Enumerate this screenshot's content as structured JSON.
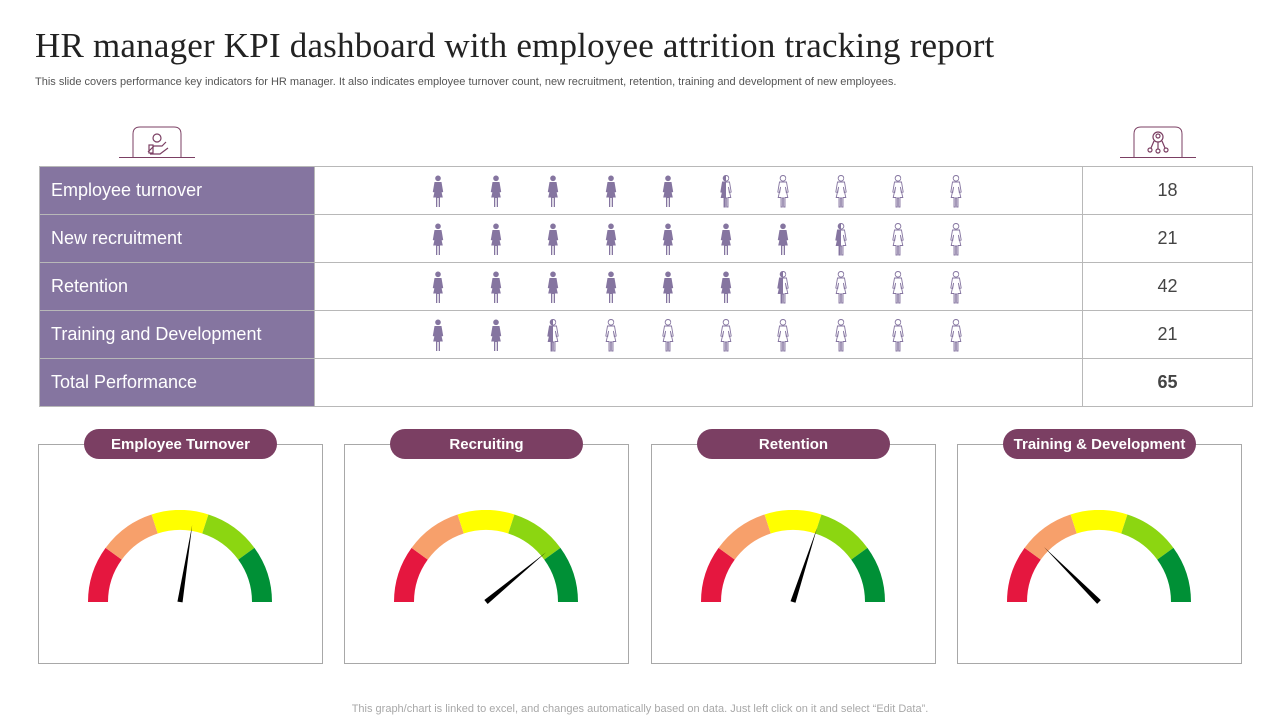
{
  "header": {
    "title": "HR manager KPI dashboard with employee attrition tracking report",
    "subtitle": "This slide covers performance key indicators for HR manager. It also indicates employee turnover count, new recruitment, retention, training and development of new employees."
  },
  "icons": {
    "left": "hand-money-icon",
    "right": "team-network-icon"
  },
  "colors": {
    "label_bg": "#8575a0",
    "figure": "#8575a0",
    "pill": "#7b3f63",
    "gauge_red": "#e5173f",
    "gauge_orange": "#f7a06b",
    "gauge_yellow": "#ffff00",
    "gauge_lightgreen": "#8cd611",
    "gauge_green": "#009036"
  },
  "chart_data": [
    {
      "type": "table",
      "figures_per_row": 10,
      "rows": [
        {
          "label": "Employee turnover",
          "value": "18",
          "filled": 5.5
        },
        {
          "label": "New recruitment",
          "value": "21",
          "filled": 7.5
        },
        {
          "label": "Retention",
          "value": "42",
          "filled": 6.5
        },
        {
          "label": "Training and Development",
          "value": "21",
          "filled": 2.5
        },
        {
          "label": "Total Performance",
          "value": "65",
          "filled": null
        }
      ]
    },
    {
      "type": "gauge",
      "gauges": [
        {
          "title": "Employee Turnover",
          "needle_fraction": 0.55
        },
        {
          "title": "Recruiting",
          "needle_fraction": 0.78
        },
        {
          "title": "Retention",
          "needle_fraction": 0.6
        },
        {
          "title": "Training & Development",
          "needle_fraction": 0.25
        }
      ]
    }
  ],
  "footer": "This graph/chart is linked to excel, and changes automatically based on data. Just left click on it and select “Edit Data”."
}
